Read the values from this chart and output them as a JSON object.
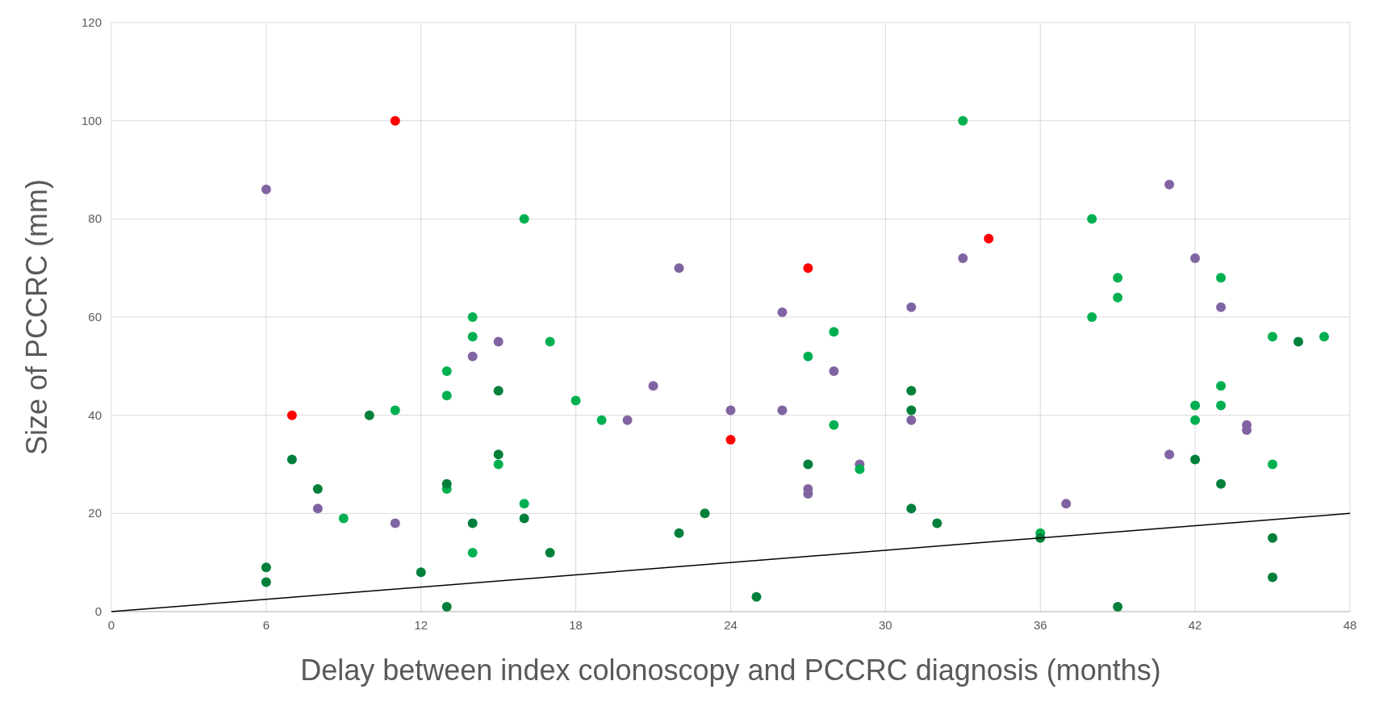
{
  "chart_data": {
    "type": "scatter",
    "xlabel": "Delay between index colonoscopy and PCCRC diagnosis (months)",
    "ylabel": "Size of PCCRC (mm)",
    "xlim": [
      0,
      48
    ],
    "ylim": [
      0,
      120
    ],
    "xticks": [
      0,
      6,
      12,
      18,
      24,
      30,
      36,
      42,
      48
    ],
    "yticks": [
      0,
      20,
      40,
      60,
      80,
      100,
      120
    ],
    "grid": true,
    "marker": "circle",
    "series": [
      {
        "color": "#8064a2",
        "x": [
          6,
          8,
          11,
          14,
          15,
          21,
          20,
          22,
          24,
          26,
          26,
          27,
          27,
          28,
          29,
          31,
          31,
          33,
          37,
          41,
          41,
          42,
          43,
          44,
          44
        ],
        "values": [
          86,
          21,
          18,
          52,
          55,
          46,
          39,
          70,
          41,
          61,
          41,
          25,
          24,
          49,
          30,
          62,
          39,
          72,
          22,
          87,
          32,
          72,
          62,
          38,
          37
        ]
      },
      {
        "color": "#00b050",
        "x": [
          9,
          11,
          13,
          13,
          13,
          14,
          14,
          14,
          15,
          16,
          16,
          17,
          18,
          19,
          27,
          28,
          28,
          29,
          33,
          36,
          38,
          38,
          39,
          39,
          42,
          42,
          43,
          43,
          43,
          45,
          45,
          47
        ],
        "values": [
          19,
          41,
          49,
          44,
          25,
          60,
          56,
          12,
          30,
          80,
          22,
          55,
          43,
          39,
          52,
          57,
          38,
          29,
          100,
          16,
          80,
          60,
          68,
          64,
          42,
          39,
          68,
          46,
          42,
          56,
          30,
          56
        ]
      },
      {
        "color": "#00803a",
        "x": [
          6,
          6,
          7,
          8,
          10,
          12,
          13,
          13,
          14,
          15,
          15,
          16,
          17,
          22,
          23,
          25,
          27,
          31,
          31,
          31,
          32,
          36,
          39,
          42,
          43,
          45,
          45,
          46
        ],
        "values": [
          9,
          6,
          31,
          25,
          40,
          8,
          26,
          1,
          18,
          45,
          32,
          19,
          12,
          16,
          20,
          3,
          30,
          45,
          41,
          21,
          18,
          15,
          1,
          31,
          26,
          15,
          7,
          55
        ]
      },
      {
        "color": "#ff0000",
        "x": [
          7,
          11,
          24,
          27,
          34
        ],
        "values": [
          40,
          100,
          35,
          70,
          76
        ]
      },
      {
        "type": "line",
        "color": "#000000",
        "x": [
          0,
          48
        ],
        "values": [
          0,
          20
        ],
        "marker": "none"
      }
    ]
  }
}
